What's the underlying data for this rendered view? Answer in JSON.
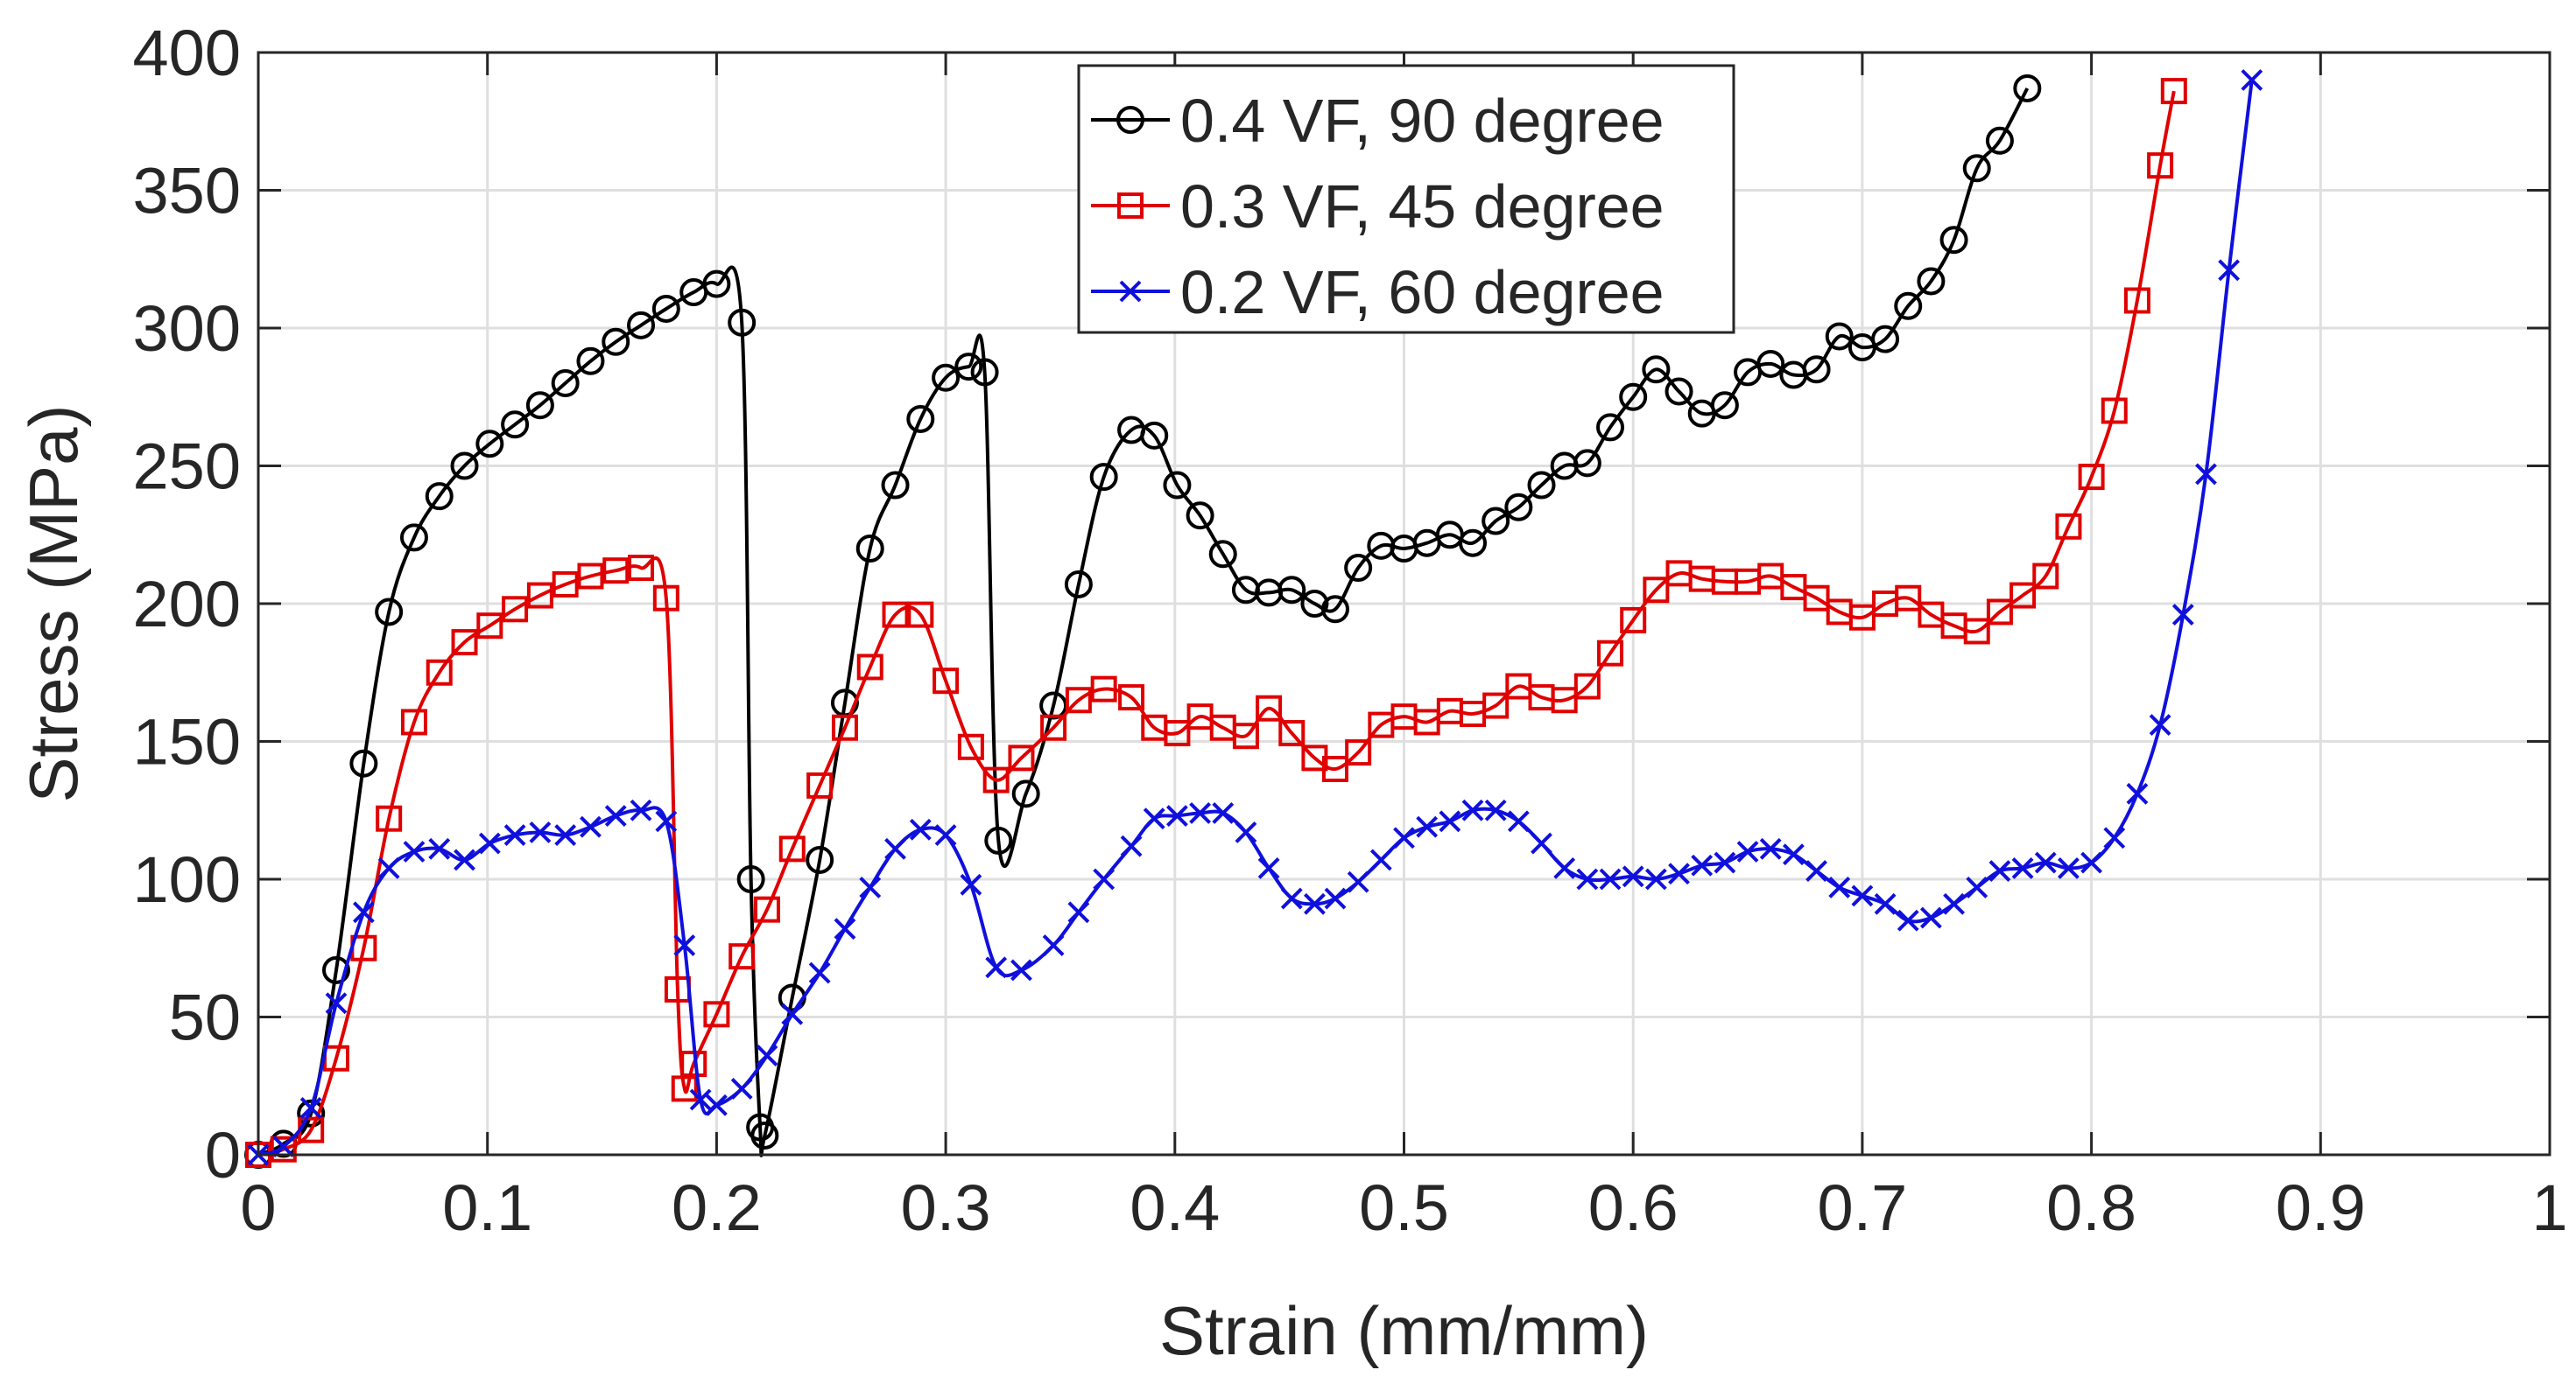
{
  "chart_data": {
    "type": "line",
    "title": "",
    "xlabel": "Strain (mm/mm)",
    "ylabel": "Stress (MPa)",
    "xlim": [
      0,
      1
    ],
    "ylim": [
      0,
      400
    ],
    "xticks": [
      0,
      0.1,
      0.2,
      0.3,
      0.4,
      0.5,
      0.6,
      0.7,
      0.8,
      0.9,
      1
    ],
    "xtick_labels": [
      "0",
      "0.1",
      "0.2",
      "0.3",
      "0.4",
      "0.5",
      "0.6",
      "0.7",
      "0.8",
      "0.9",
      "1"
    ],
    "yticks": [
      0,
      50,
      100,
      150,
      200,
      250,
      300,
      350,
      400
    ],
    "ytick_labels": [
      "0",
      "50",
      "100",
      "150",
      "200",
      "250",
      "300",
      "350",
      "400"
    ],
    "grid": true,
    "legend_position": "top-center",
    "series": [
      {
        "name": "0.4 VF, 90 degree",
        "color": "#000000",
        "marker": "circle",
        "points": [
          [
            0.0,
            0
          ],
          [
            0.011,
            4
          ],
          [
            0.023,
            15
          ],
          [
            0.034,
            67
          ],
          [
            0.046,
            142
          ],
          [
            0.057,
            197
          ],
          [
            0.068,
            224
          ],
          [
            0.079,
            239
          ],
          [
            0.09,
            250
          ],
          [
            0.101,
            258
          ],
          [
            0.112,
            265
          ],
          [
            0.123,
            272
          ],
          [
            0.134,
            280
          ],
          [
            0.145,
            288
          ],
          [
            0.156,
            295
          ],
          [
            0.167,
            301
          ],
          [
            0.178,
            307
          ],
          [
            0.19,
            313
          ],
          [
            0.2,
            316
          ],
          [
            0.211,
            302
          ],
          [
            0.215,
            100
          ],
          [
            0.219,
            10
          ],
          [
            0.221,
            7
          ],
          [
            0.233,
            57
          ],
          [
            0.245,
            107
          ],
          [
            0.256,
            164
          ],
          [
            0.267,
            220
          ],
          [
            0.278,
            243
          ],
          [
            0.289,
            267
          ],
          [
            0.3,
            282
          ],
          [
            0.31,
            286
          ],
          [
            0.317,
            284
          ],
          [
            0.323,
            114
          ],
          [
            0.335,
            131
          ],
          [
            0.347,
            163
          ],
          [
            0.358,
            207
          ],
          [
            0.369,
            246
          ],
          [
            0.381,
            263
          ],
          [
            0.391,
            261
          ],
          [
            0.401,
            243
          ],
          [
            0.411,
            232
          ],
          [
            0.421,
            218
          ],
          [
            0.431,
            205
          ],
          [
            0.441,
            204
          ],
          [
            0.451,
            205
          ],
          [
            0.461,
            200
          ],
          [
            0.47,
            198
          ],
          [
            0.48,
            213
          ],
          [
            0.49,
            221
          ],
          [
            0.5,
            220
          ],
          [
            0.51,
            222
          ],
          [
            0.52,
            225
          ],
          [
            0.53,
            222
          ],
          [
            0.54,
            230
          ],
          [
            0.55,
            235
          ],
          [
            0.56,
            243
          ],
          [
            0.57,
            250
          ],
          [
            0.58,
            251
          ],
          [
            0.59,
            264
          ],
          [
            0.6,
            275
          ],
          [
            0.61,
            285
          ],
          [
            0.62,
            277
          ],
          [
            0.63,
            269
          ],
          [
            0.64,
            272
          ],
          [
            0.65,
            284
          ],
          [
            0.66,
            287
          ],
          [
            0.67,
            283
          ],
          [
            0.68,
            285
          ],
          [
            0.69,
            297
          ],
          [
            0.7,
            293
          ],
          [
            0.71,
            296
          ],
          [
            0.72,
            308
          ],
          [
            0.73,
            317
          ],
          [
            0.74,
            332
          ],
          [
            0.75,
            358
          ],
          [
            0.76,
            368
          ],
          [
            0.772,
            387
          ]
        ]
      },
      {
        "name": "0.3 VF, 45 degree",
        "color": "#e00000",
        "marker": "square",
        "points": [
          [
            0.0,
            0
          ],
          [
            0.011,
            2
          ],
          [
            0.023,
            9
          ],
          [
            0.034,
            35
          ],
          [
            0.046,
            75
          ],
          [
            0.057,
            122
          ],
          [
            0.068,
            157
          ],
          [
            0.079,
            175
          ],
          [
            0.09,
            186
          ],
          [
            0.101,
            192
          ],
          [
            0.112,
            198
          ],
          [
            0.123,
            203
          ],
          [
            0.134,
            207
          ],
          [
            0.145,
            210
          ],
          [
            0.156,
            212
          ],
          [
            0.167,
            213
          ],
          [
            0.178,
            202
          ],
          [
            0.183,
            60
          ],
          [
            0.186,
            24
          ],
          [
            0.19,
            33
          ],
          [
            0.2,
            51
          ],
          [
            0.211,
            72
          ],
          [
            0.222,
            89
          ],
          [
            0.233,
            111
          ],
          [
            0.245,
            134
          ],
          [
            0.256,
            155
          ],
          [
            0.267,
            177
          ],
          [
            0.278,
            196
          ],
          [
            0.289,
            196
          ],
          [
            0.3,
            172
          ],
          [
            0.311,
            148
          ],
          [
            0.322,
            136
          ],
          [
            0.333,
            144
          ],
          [
            0.347,
            155
          ],
          [
            0.358,
            165
          ],
          [
            0.369,
            169
          ],
          [
            0.381,
            166
          ],
          [
            0.391,
            155
          ],
          [
            0.401,
            153
          ],
          [
            0.411,
            159
          ],
          [
            0.421,
            155
          ],
          [
            0.431,
            152
          ],
          [
            0.441,
            162
          ],
          [
            0.451,
            153
          ],
          [
            0.461,
            144
          ],
          [
            0.47,
            140
          ],
          [
            0.48,
            146
          ],
          [
            0.49,
            156
          ],
          [
            0.5,
            159
          ],
          [
            0.51,
            157
          ],
          [
            0.52,
            161
          ],
          [
            0.53,
            160
          ],
          [
            0.54,
            163
          ],
          [
            0.55,
            170
          ],
          [
            0.56,
            166
          ],
          [
            0.57,
            165
          ],
          [
            0.58,
            170
          ],
          [
            0.59,
            182
          ],
          [
            0.6,
            194
          ],
          [
            0.61,
            205
          ],
          [
            0.62,
            211
          ],
          [
            0.63,
            209
          ],
          [
            0.64,
            208
          ],
          [
            0.65,
            208
          ],
          [
            0.66,
            210
          ],
          [
            0.67,
            206
          ],
          [
            0.68,
            202
          ],
          [
            0.69,
            197
          ],
          [
            0.7,
            195
          ],
          [
            0.71,
            200
          ],
          [
            0.72,
            202
          ],
          [
            0.73,
            196
          ],
          [
            0.74,
            192
          ],
          [
            0.75,
            190
          ],
          [
            0.76,
            197
          ],
          [
            0.77,
            203
          ],
          [
            0.78,
            210
          ],
          [
            0.79,
            228
          ],
          [
            0.8,
            246
          ],
          [
            0.81,
            270
          ],
          [
            0.82,
            310
          ],
          [
            0.83,
            359
          ],
          [
            0.836,
            386
          ]
        ]
      },
      {
        "name": "0.2 VF, 60 degree",
        "color": "#1010dd",
        "marker": "cross",
        "points": [
          [
            0.0,
            0
          ],
          [
            0.011,
            3
          ],
          [
            0.023,
            17
          ],
          [
            0.034,
            55
          ],
          [
            0.046,
            88
          ],
          [
            0.057,
            104
          ],
          [
            0.068,
            110
          ],
          [
            0.079,
            111
          ],
          [
            0.09,
            107
          ],
          [
            0.101,
            113
          ],
          [
            0.112,
            116
          ],
          [
            0.123,
            117
          ],
          [
            0.134,
            116
          ],
          [
            0.145,
            119
          ],
          [
            0.156,
            123
          ],
          [
            0.167,
            125
          ],
          [
            0.178,
            121
          ],
          [
            0.186,
            76
          ],
          [
            0.193,
            20
          ],
          [
            0.2,
            18
          ],
          [
            0.211,
            24
          ],
          [
            0.222,
            36
          ],
          [
            0.233,
            51
          ],
          [
            0.245,
            66
          ],
          [
            0.256,
            82
          ],
          [
            0.267,
            97
          ],
          [
            0.278,
            111
          ],
          [
            0.289,
            118
          ],
          [
            0.3,
            116
          ],
          [
            0.311,
            98
          ],
          [
            0.322,
            68
          ],
          [
            0.333,
            67
          ],
          [
            0.347,
            76
          ],
          [
            0.358,
            88
          ],
          [
            0.369,
            100
          ],
          [
            0.381,
            112
          ],
          [
            0.391,
            122
          ],
          [
            0.401,
            123
          ],
          [
            0.411,
            124
          ],
          [
            0.421,
            124
          ],
          [
            0.431,
            117
          ],
          [
            0.441,
            104
          ],
          [
            0.451,
            93
          ],
          [
            0.461,
            91
          ],
          [
            0.47,
            93
          ],
          [
            0.48,
            99
          ],
          [
            0.49,
            107
          ],
          [
            0.5,
            115
          ],
          [
            0.51,
            119
          ],
          [
            0.52,
            121
          ],
          [
            0.53,
            125
          ],
          [
            0.54,
            125
          ],
          [
            0.55,
            121
          ],
          [
            0.56,
            113
          ],
          [
            0.57,
            104
          ],
          [
            0.58,
            100
          ],
          [
            0.59,
            100
          ],
          [
            0.6,
            101
          ],
          [
            0.61,
            100
          ],
          [
            0.62,
            102
          ],
          [
            0.63,
            105
          ],
          [
            0.64,
            106
          ],
          [
            0.65,
            110
          ],
          [
            0.66,
            111
          ],
          [
            0.67,
            109
          ],
          [
            0.68,
            103
          ],
          [
            0.69,
            97
          ],
          [
            0.7,
            94
          ],
          [
            0.71,
            91
          ],
          [
            0.72,
            85
          ],
          [
            0.73,
            86
          ],
          [
            0.74,
            91
          ],
          [
            0.75,
            97
          ],
          [
            0.76,
            103
          ],
          [
            0.77,
            104
          ],
          [
            0.78,
            106
          ],
          [
            0.79,
            104
          ],
          [
            0.8,
            106
          ],
          [
            0.81,
            115
          ],
          [
            0.82,
            131
          ],
          [
            0.83,
            156
          ],
          [
            0.84,
            196
          ],
          [
            0.85,
            247
          ],
          [
            0.86,
            321
          ],
          [
            0.87,
            390
          ]
        ]
      }
    ]
  }
}
